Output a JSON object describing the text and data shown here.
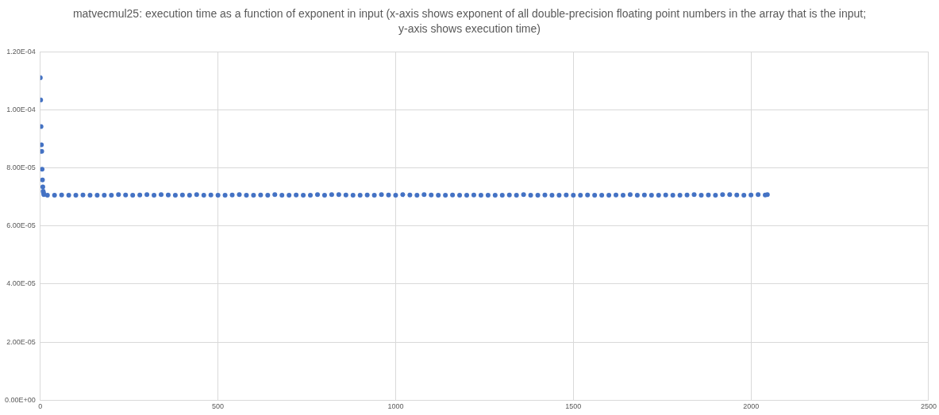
{
  "chart_data": {
    "type": "scatter",
    "title": "matvecmul25: execution time as a function of exponent in input (x-axis shows exponent of all double-precision floating point numbers in the array that is the input; y-axis shows execution time)",
    "x": [
      0,
      1,
      2,
      3,
      4,
      5,
      6,
      7,
      8,
      9,
      10,
      20,
      40,
      60,
      80,
      100,
      120,
      140,
      160,
      180,
      200,
      220,
      240,
      260,
      280,
      300,
      320,
      340,
      360,
      380,
      400,
      420,
      440,
      460,
      480,
      500,
      520,
      540,
      560,
      580,
      600,
      620,
      640,
      660,
      680,
      700,
      720,
      740,
      760,
      780,
      800,
      820,
      840,
      860,
      880,
      900,
      920,
      940,
      960,
      980,
      1000,
      1020,
      1040,
      1060,
      1080,
      1100,
      1120,
      1140,
      1160,
      1180,
      1200,
      1220,
      1240,
      1260,
      1280,
      1300,
      1320,
      1340,
      1360,
      1380,
      1400,
      1420,
      1440,
      1460,
      1480,
      1500,
      1520,
      1540,
      1560,
      1580,
      1600,
      1620,
      1640,
      1660,
      1680,
      1700,
      1720,
      1740,
      1760,
      1780,
      1800,
      1820,
      1840,
      1860,
      1880,
      1900,
      1920,
      1940,
      1960,
      1980,
      2000,
      2020,
      2040,
      2046
    ],
    "series": [
      {
        "color": "#4472c4",
        "values": [
          0.0001111,
          0.0001034,
          9.43e-05,
          8.8e-05,
          8.57e-05,
          7.96e-05,
          7.59e-05,
          7.35e-05,
          7.2e-05,
          7.14e-05,
          7.08e-05,
          7.06e-05,
          7.06e-05,
          7.07e-05,
          7.06e-05,
          7.06e-05,
          7.07e-05,
          7.06e-05,
          7.06e-05,
          7.06e-05,
          7.06e-05,
          7.08e-05,
          7.07e-05,
          7.06e-05,
          7.07e-05,
          7.08e-05,
          7.06e-05,
          7.08e-05,
          7.07e-05,
          7.06e-05,
          7.07e-05,
          7.06e-05,
          7.08e-05,
          7.06e-05,
          7.07e-05,
          7.06e-05,
          7.06e-05,
          7.07e-05,
          7.08e-05,
          7.06e-05,
          7.06e-05,
          7.07e-05,
          7.06e-05,
          7.08e-05,
          7.06e-05,
          7.06e-05,
          7.07e-05,
          7.06e-05,
          7.06e-05,
          7.08e-05,
          7.06e-05,
          7.08e-05,
          7.08e-05,
          7.07e-05,
          7.06e-05,
          7.06e-05,
          7.07e-05,
          7.06e-05,
          7.08e-05,
          7.07e-05,
          7.06e-05,
          7.08e-05,
          7.07e-05,
          7.06e-05,
          7.08e-05,
          7.07e-05,
          7.06e-05,
          7.06e-05,
          7.07e-05,
          7.06e-05,
          7.06e-05,
          7.07e-05,
          7.06e-05,
          7.06e-05,
          7.06e-05,
          7.06e-05,
          7.07e-05,
          7.06e-05,
          7.08e-05,
          7.06e-05,
          7.06e-05,
          7.07e-05,
          7.06e-05,
          7.06e-05,
          7.07e-05,
          7.06e-05,
          7.06e-05,
          7.07e-05,
          7.06e-05,
          7.06e-05,
          7.06e-05,
          7.07e-05,
          7.06e-05,
          7.08e-05,
          7.06e-05,
          7.07e-05,
          7.06e-05,
          7.06e-05,
          7.07e-05,
          7.06e-05,
          7.06e-05,
          7.07e-05,
          7.08e-05,
          7.06e-05,
          7.07e-05,
          7.06e-05,
          7.08e-05,
          7.08e-05,
          7.07e-05,
          7.06e-05,
          7.07e-05,
          7.08e-05,
          7.07e-05,
          7.08e-05
        ]
      }
    ],
    "xlim": [
      0,
      2500
    ],
    "xticks": [
      0,
      500,
      1000,
      1500,
      2000,
      2500
    ],
    "ylim": [
      0,
      0.00012
    ],
    "yticks": [
      {
        "value": 0,
        "label": "0.00E+00"
      },
      {
        "value": 2e-05,
        "label": "2.00E-05"
      },
      {
        "value": 4e-05,
        "label": "4.00E-05"
      },
      {
        "value": 6e-05,
        "label": "6.00E-05"
      },
      {
        "value": 8e-05,
        "label": "8.00E-05"
      },
      {
        "value": 0.0001,
        "label": "1.00E-04"
      },
      {
        "value": 0.00012,
        "label": "1.20E-04"
      }
    ],
    "grid": true,
    "marker": "circle",
    "legend": false
  }
}
